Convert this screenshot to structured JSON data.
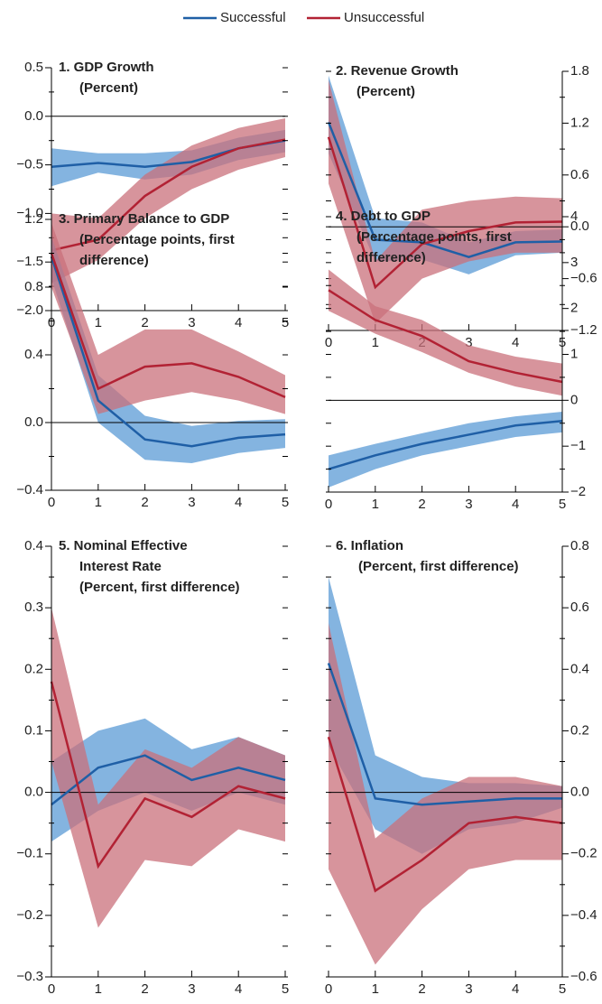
{
  "chart_data": [
    {
      "type": "line",
      "title": [
        "1. GDP Growth"
      ],
      "subtitle": [
        "(Percent)"
      ],
      "yaxis": "left",
      "x": [
        0,
        1,
        2,
        3,
        4,
        5
      ],
      "xlim": [
        0,
        5
      ],
      "xticks": [
        0,
        1,
        2,
        3,
        4,
        5
      ],
      "ylim": [
        -2.0,
        0.5
      ],
      "yticks": [
        {
          "value": 0.5,
          "label": "0.5"
        },
        {
          "value": 0.0,
          "label": "0.0"
        },
        {
          "value": -0.5,
          "label": "−0.5"
        },
        {
          "value": -1.0,
          "label": "−1.0"
        },
        {
          "value": -1.5,
          "label": "−1.5"
        },
        {
          "value": -2.0,
          "label": "−2.0"
        }
      ],
      "series": [
        {
          "name": "Successful",
          "color": "#1f5fa6",
          "band_color": "#5b9bd5",
          "values": [
            -0.52,
            -0.48,
            -0.52,
            -0.47,
            -0.33,
            -0.25
          ],
          "lower": [
            -0.72,
            -0.58,
            -0.65,
            -0.6,
            -0.45,
            -0.37
          ],
          "upper": [
            -0.33,
            -0.38,
            -0.38,
            -0.35,
            -0.22,
            -0.14
          ]
        },
        {
          "name": "Unsuccessful",
          "color": "#b22234",
          "band_color": "#c9707b",
          "values": [
            -1.38,
            -1.27,
            -0.82,
            -0.52,
            -0.33,
            -0.24
          ],
          "lower": [
            -1.72,
            -1.48,
            -1.05,
            -0.75,
            -0.55,
            -0.42
          ],
          "upper": [
            -1.0,
            -1.05,
            -0.6,
            -0.3,
            -0.12,
            -0.02
          ]
        }
      ]
    },
    {
      "type": "line",
      "title": [
        "2. Revenue Growth"
      ],
      "subtitle": [
        "(Percent)"
      ],
      "yaxis": "right",
      "x": [
        0,
        1,
        2,
        3,
        4,
        5
      ],
      "xlim": [
        0,
        5
      ],
      "xticks": [
        0,
        1,
        2,
        3,
        4,
        5
      ],
      "ylim": [
        -1.2,
        1.8
      ],
      "yticks": [
        {
          "value": 1.8,
          "label": "1.8"
        },
        {
          "value": 1.2,
          "label": "1.2"
        },
        {
          "value": 0.6,
          "label": "0.6"
        },
        {
          "value": 0.0,
          "label": "0.0"
        },
        {
          "value": -0.6,
          "label": "−0.6"
        },
        {
          "value": -1.2,
          "label": "−1.2"
        }
      ],
      "series": [
        {
          "color": "#1f5fa6",
          "band_color": "#5b9bd5",
          "values": [
            1.21,
            -0.15,
            -0.18,
            -0.35,
            -0.18,
            -0.17
          ],
          "lower": [
            0.85,
            -0.4,
            -0.38,
            -0.55,
            -0.33,
            -0.3
          ],
          "upper": [
            1.75,
            0.1,
            0.05,
            -0.18,
            -0.05,
            -0.03
          ]
        },
        {
          "color": "#b22234",
          "band_color": "#c9707b",
          "values": [
            1.04,
            -0.7,
            -0.2,
            -0.05,
            0.05,
            0.06
          ],
          "lower": [
            0.5,
            -1.12,
            -0.6,
            -0.4,
            -0.3,
            -0.3
          ],
          "upper": [
            1.7,
            -0.4,
            0.2,
            0.3,
            0.35,
            0.33
          ]
        }
      ]
    },
    {
      "type": "line",
      "title": [
        "3. Primary Balance to GDP"
      ],
      "subtitle": [
        "(Percentage points, first",
        "difference)"
      ],
      "yaxis": "left",
      "x": [
        0,
        1,
        2,
        3,
        4,
        5
      ],
      "xlim": [
        0,
        5
      ],
      "xticks": [
        0,
        1,
        2,
        3,
        4,
        5
      ],
      "ylim": [
        -0.4,
        1.2
      ],
      "yticks": [
        {
          "value": 1.2,
          "label": "1.2"
        },
        {
          "value": 0.8,
          "label": "0.8"
        },
        {
          "value": 0.4,
          "label": "0.4"
        },
        {
          "value": 0.0,
          "label": "0.0"
        },
        {
          "value": -0.4,
          "label": "−0.4"
        }
      ],
      "series": [
        {
          "color": "#1f5fa6",
          "band_color": "#5b9bd5",
          "values": [
            0.98,
            0.13,
            -0.1,
            -0.14,
            -0.09,
            -0.07
          ],
          "lower": [
            0.85,
            0.0,
            -0.22,
            -0.24,
            -0.18,
            -0.15
          ],
          "upper": [
            1.1,
            0.28,
            0.04,
            -0.02,
            0.01,
            0.02
          ]
        },
        {
          "color": "#b22234",
          "band_color": "#c9707b",
          "values": [
            1.0,
            0.2,
            0.33,
            0.35,
            0.27,
            0.15
          ],
          "lower": [
            0.8,
            0.05,
            0.13,
            0.18,
            0.13,
            0.05
          ],
          "upper": [
            1.18,
            0.4,
            0.55,
            0.55,
            0.42,
            0.28
          ]
        }
      ]
    },
    {
      "type": "line",
      "title": [
        "4. Debt to GDP"
      ],
      "subtitle": [
        "(Percentage points, first",
        "difference)"
      ],
      "yaxis": "right",
      "x": [
        0,
        1,
        2,
        3,
        4,
        5
      ],
      "xlim": [
        0,
        5
      ],
      "xticks": [
        0,
        1,
        2,
        3,
        4,
        5
      ],
      "ylim": [
        -2,
        4
      ],
      "yticks": [
        4,
        3,
        2,
        1,
        0,
        {
          "value": -1,
          "label": "−1"
        },
        {
          "value": -2,
          "label": "−2"
        }
      ],
      "series": [
        {
          "color": "#1f5fa6",
          "band_color": "#5b9bd5",
          "values": [
            -1.5,
            -1.2,
            -0.95,
            -0.75,
            -0.55,
            -0.45
          ],
          "lower": [
            -1.9,
            -1.5,
            -1.2,
            -1.0,
            -0.8,
            -0.7
          ],
          "upper": [
            -1.2,
            -0.95,
            -0.72,
            -0.5,
            -0.35,
            -0.25
          ]
        },
        {
          "color": "#b22234",
          "band_color": "#c9707b",
          "values": [
            2.4,
            1.75,
            1.4,
            0.85,
            0.6,
            0.4
          ],
          "lower": [
            1.95,
            1.45,
            1.05,
            0.6,
            0.3,
            0.1
          ],
          "upper": [
            2.85,
            2.05,
            1.75,
            1.2,
            0.95,
            0.8
          ]
        }
      ]
    },
    {
      "type": "line",
      "title": [
        "5. Nominal Effective",
        "Interest Rate"
      ],
      "subtitle": [
        "(Percent, first difference)"
      ],
      "yaxis": "left",
      "x": [
        0,
        1,
        2,
        3,
        4,
        5
      ],
      "xlim": [
        0,
        5
      ],
      "xticks": [
        0,
        1,
        2,
        3,
        4,
        5
      ],
      "ylim": [
        -0.3,
        0.4
      ],
      "yticks": [
        0.4,
        0.3,
        0.2,
        0.1,
        {
          "value": 0.0,
          "label": "0.0"
        },
        {
          "value": -0.1,
          "label": "−0.1"
        },
        {
          "value": -0.2,
          "label": "−0.2"
        },
        {
          "value": -0.3,
          "label": "−0.3"
        }
      ],
      "series": [
        {
          "color": "#1f5fa6",
          "band_color": "#5b9bd5",
          "values": [
            -0.02,
            0.04,
            0.06,
            0.02,
            0.04,
            0.02
          ],
          "lower": [
            -0.08,
            -0.03,
            0.0,
            -0.03,
            0.0,
            -0.02
          ],
          "upper": [
            0.05,
            0.1,
            0.12,
            0.07,
            0.09,
            0.06
          ]
        },
        {
          "color": "#b22234",
          "band_color": "#c9707b",
          "values": [
            0.18,
            -0.12,
            -0.01,
            -0.04,
            0.01,
            -0.01
          ],
          "lower": [
            0.05,
            -0.22,
            -0.11,
            -0.12,
            -0.06,
            -0.08
          ],
          "upper": [
            0.3,
            -0.02,
            0.07,
            0.04,
            0.09,
            0.06
          ]
        }
      ]
    },
    {
      "type": "line",
      "title": [
        "6. Inflation"
      ],
      "subtitle": [
        "(Percent, first difference)"
      ],
      "yaxis": "right",
      "x": [
        0,
        1,
        2,
        3,
        4,
        5
      ],
      "xlim": [
        0,
        5
      ],
      "xticks": [
        0,
        1,
        2,
        3,
        4,
        5
      ],
      "ylim": [
        -0.6,
        0.8
      ],
      "yticks": [
        0.8,
        0.6,
        0.4,
        0.2,
        {
          "value": 0.0,
          "label": "0.0"
        },
        {
          "value": -0.2,
          "label": "−0.2"
        },
        {
          "value": -0.4,
          "label": "−0.4"
        },
        {
          "value": -0.6,
          "label": "−0.6"
        }
      ],
      "series": [
        {
          "color": "#1f5fa6",
          "band_color": "#5b9bd5",
          "values": [
            0.42,
            -0.02,
            -0.04,
            -0.03,
            -0.02,
            -0.02
          ],
          "lower": [
            0.15,
            -0.12,
            -0.2,
            -0.12,
            -0.1,
            -0.05
          ],
          "upper": [
            0.7,
            0.12,
            0.05,
            0.03,
            0.03,
            0.02
          ]
        },
        {
          "color": "#b22234",
          "band_color": "#c9707b",
          "values": [
            0.18,
            -0.32,
            -0.22,
            -0.1,
            -0.08,
            -0.1
          ],
          "lower": [
            -0.25,
            -0.56,
            -0.38,
            -0.25,
            -0.22,
            -0.22
          ],
          "upper": [
            0.55,
            -0.15,
            -0.02,
            0.05,
            0.05,
            0.02
          ]
        }
      ]
    }
  ]
}
